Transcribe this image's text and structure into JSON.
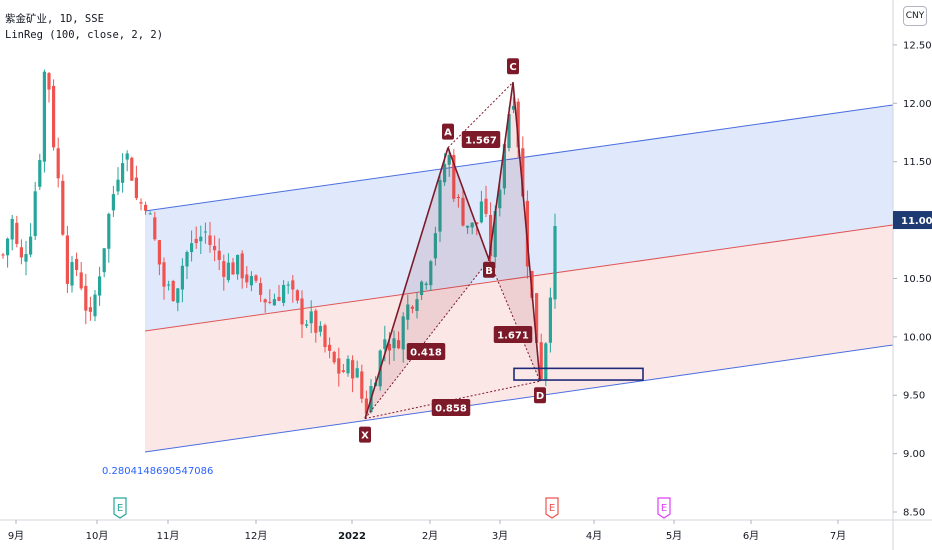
{
  "header": {
    "symbol_line": "紫金矿业, 1D, SSE",
    "indicator_line": "LinReg (100, close, 2, 2)"
  },
  "currency_button": "CNY",
  "last_price_label": "11.00",
  "regression_value_label": "0.2804148690547086",
  "colors": {
    "up": "#26a69a",
    "down": "#ef5350",
    "upper_channel_fill": "#dbe5fb",
    "lower_channel_fill": "#fce3e3",
    "upper_line": "#4a6ee0",
    "mid_line": "#e05555",
    "pattern_label": "#7d1a2a",
    "pattern_line": "#7d1a2a",
    "price_badge": "#1e3a72"
  },
  "chart_data": {
    "type": "candlestick",
    "y_axis": {
      "range": [
        8.5,
        12.85
      ],
      "ticks": [
        "8.50",
        "9.00",
        "9.50",
        "10.00",
        "10.50",
        "11.00",
        "11.50",
        "12.00",
        "12.50"
      ]
    },
    "x_axis": {
      "ticks": [
        "9月",
        "10月",
        "11月",
        "12月",
        "2022",
        "2月",
        "3月",
        "4月",
        "5月",
        "6月",
        "7月"
      ]
    },
    "harmonic_pattern": {
      "points": [
        {
          "label": "X",
          "price": 9.3
        },
        {
          "label": "A",
          "price": 11.62
        },
        {
          "label": "B",
          "price": 10.66
        },
        {
          "label": "C",
          "price": 12.18
        },
        {
          "label": "D",
          "price": 9.62
        }
      ],
      "ratios": [
        "1.567",
        "0.418",
        "1.671",
        "0.858"
      ]
    },
    "target_zone": {
      "low": 9.63,
      "high": 9.73
    },
    "event_markers": [
      "E",
      "E",
      "E"
    ],
    "last_price": 11.0
  }
}
